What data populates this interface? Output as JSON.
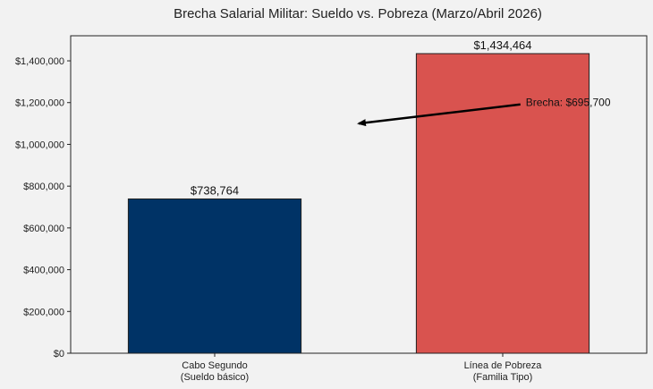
{
  "chart_data": {
    "type": "bar",
    "title": "Brecha Salarial Militar: Sueldo vs. Pobreza (Marzo/Abril 2026)",
    "categories": [
      [
        "Cabo Segundo",
        "(Sueldo básico)"
      ],
      [
        "Línea de Pobreza",
        "(Familia Tipo)"
      ]
    ],
    "values": [
      738764,
      1434464
    ],
    "value_labels": [
      "$738,764",
      "$1,434,464"
    ],
    "colors": [
      "#003366",
      "#d9534f"
    ],
    "ylim": [
      0,
      1520000
    ],
    "yticks": [
      0,
      200000,
      400000,
      600000,
      800000,
      1000000,
      1200000,
      1400000
    ],
    "ytick_labels": [
      "$0",
      "$200,000",
      "$400,000",
      "$600,000",
      "$800,000",
      "$1,000,000",
      "$1,200,000",
      "$1,400,000"
    ],
    "grid": false,
    "annotation": {
      "text": "Brecha: $695,700",
      "text_at": [
        1.08,
        1200000
      ],
      "arrow_to": [
        0.5,
        1100000
      ]
    }
  }
}
